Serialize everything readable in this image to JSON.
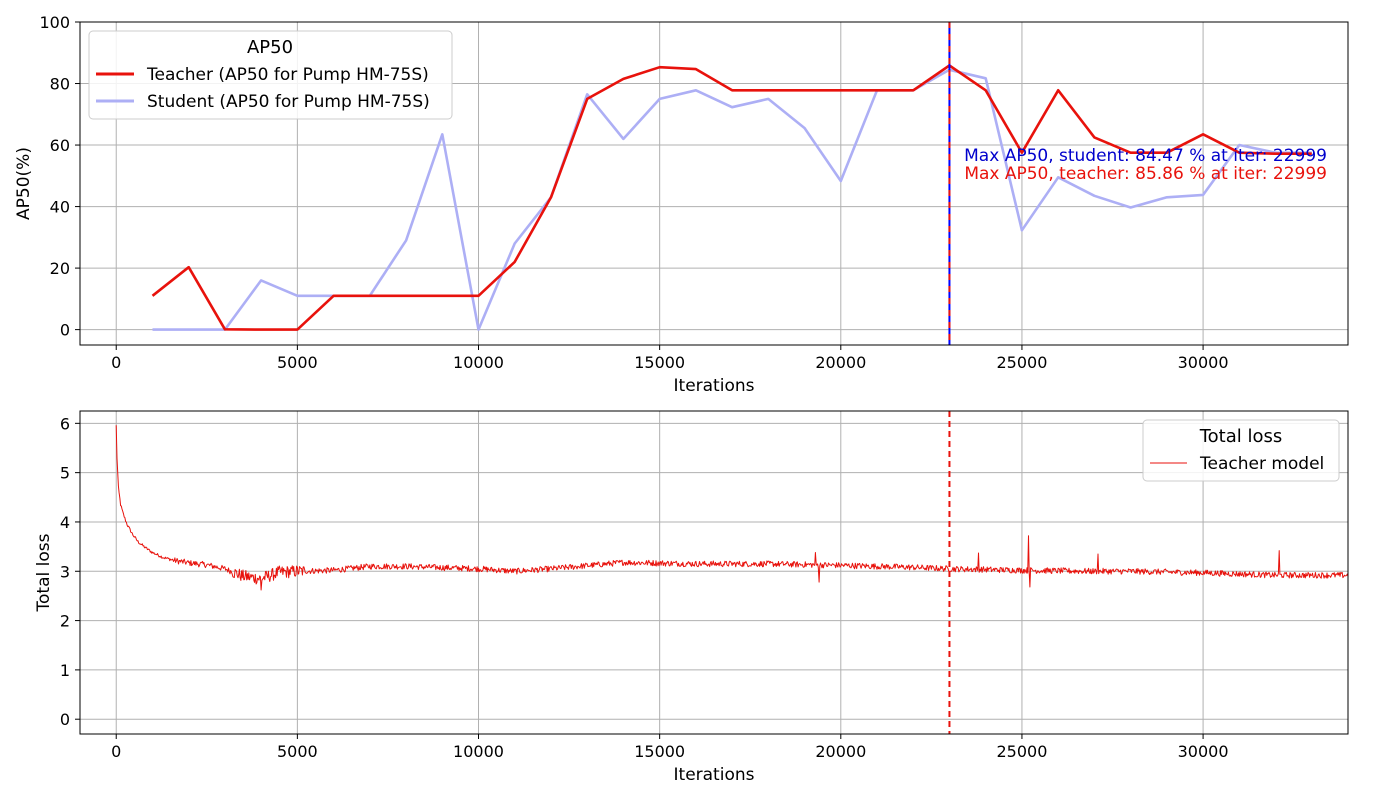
{
  "chart_data": [
    {
      "type": "line",
      "xlabel": "Iterations",
      "ylabel": "AP50(%)",
      "xlim": [
        -1000,
        34000
      ],
      "ylim": [
        -5,
        100
      ],
      "xticks": [
        0,
        5000,
        10000,
        15000,
        20000,
        25000,
        30000
      ],
      "yticks": [
        0,
        20,
        40,
        60,
        80,
        100
      ],
      "grid": true,
      "legend": {
        "title": "AP50",
        "placement": "top-left",
        "entries": [
          "Teacher (AP50 for Pump HM-75S)",
          "Student (AP50 for Pump HM-75S)"
        ]
      },
      "series": [
        {
          "name": "Teacher (AP50 for Pump HM-75S)",
          "color": "#e8120c",
          "x": [
            1000,
            2000,
            3000,
            4000,
            5000,
            6000,
            7000,
            8000,
            9000,
            10000,
            11000,
            12000,
            13000,
            14000,
            15000,
            16000,
            17000,
            18000,
            19000,
            20000,
            21000,
            22000,
            22999,
            24000,
            25000,
            26000,
            27000,
            28000,
            29000,
            30000,
            31000,
            32000,
            33000
          ],
          "values": [
            11,
            20.3,
            0.1,
            0,
            0,
            11,
            11,
            11,
            11,
            11,
            22,
            43,
            75,
            81.5,
            85.3,
            84.7,
            77.8,
            77.8,
            77.8,
            77.8,
            77.8,
            77.8,
            85.86,
            77.8,
            57.5,
            77.8,
            62.5,
            57.5,
            57.5,
            63.5,
            57.5,
            57.2,
            57.2
          ]
        },
        {
          "name": "Student (AP50 for Pump HM-75S)",
          "color": "#adaff5",
          "x": [
            1000,
            2000,
            3000,
            4000,
            5000,
            6000,
            7000,
            8000,
            9000,
            10000,
            11000,
            12000,
            13000,
            14000,
            15000,
            16000,
            17000,
            18000,
            19000,
            20000,
            21000,
            22000,
            22999,
            24000,
            25000,
            26000,
            27000,
            28000,
            29000,
            30000,
            31000,
            32000,
            33000
          ],
          "values": [
            0,
            0,
            0,
            16,
            11,
            11,
            11,
            29,
            63.5,
            0,
            28,
            43,
            76.5,
            62,
            75,
            77.8,
            72.3,
            75,
            65.5,
            48.3,
            77.8,
            77.8,
            84.47,
            81.7,
            32.3,
            49.5,
            43.5,
            39.7,
            43,
            43.8,
            60,
            57.5,
            57.5
          ]
        }
      ],
      "vline_x": 22999,
      "annotations": [
        {
          "text": "Max AP50, student: 84.47 % at iter: 22999",
          "color": "#0000cc"
        },
        {
          "text": "Max AP50, teacher: 85.86 % at iter: 22999",
          "color": "#e8120c"
        }
      ]
    },
    {
      "type": "line",
      "xlabel": "Iterations",
      "ylabel": "Total loss",
      "xlim": [
        -1000,
        34000
      ],
      "ylim": [
        -0.3,
        6.25
      ],
      "xticks": [
        0,
        5000,
        10000,
        15000,
        20000,
        25000,
        30000
      ],
      "yticks": [
        0,
        1,
        2,
        3,
        4,
        5,
        6
      ],
      "grid": true,
      "legend": {
        "title": "Total loss",
        "placement": "top-right",
        "entries": [
          "Teacher model"
        ]
      },
      "series": [
        {
          "name": "Teacher model",
          "color": "#e8120c",
          "trend_x": [
            0,
            20,
            60,
            120,
            200,
            300,
            450,
            600,
            800,
            1000,
            1300,
            1600,
            2000,
            2500,
            3000,
            3500,
            4000,
            4500,
            5000,
            6000,
            7000,
            8000,
            10000,
            11000,
            12000,
            14000,
            16000,
            18000,
            20000,
            22000,
            23000,
            25000,
            27000,
            28000,
            30000,
            32000,
            34000
          ],
          "trend_y": [
            5.95,
            5.3,
            4.7,
            4.35,
            4.15,
            3.95,
            3.75,
            3.6,
            3.48,
            3.38,
            3.28,
            3.22,
            3.17,
            3.13,
            3.05,
            2.9,
            2.85,
            2.98,
            3.0,
            3.02,
            3.1,
            3.1,
            3.05,
            3.0,
            3.05,
            3.18,
            3.15,
            3.15,
            3.12,
            3.08,
            3.05,
            3.02,
            3.0,
            3.0,
            2.97,
            2.92,
            2.92
          ],
          "spikes": [
            {
              "x": 25180,
              "y": 3.72
            },
            {
              "x": 25220,
              "y": 2.68
            },
            {
              "x": 32100,
              "y": 3.42
            },
            {
              "x": 27100,
              "y": 3.35
            },
            {
              "x": 19300,
              "y": 3.38
            },
            {
              "x": 4000,
              "y": 2.62
            },
            {
              "x": 19400,
              "y": 2.78
            },
            {
              "x": 23800,
              "y": 3.37
            }
          ]
        }
      ],
      "vline_x": 22999
    }
  ]
}
